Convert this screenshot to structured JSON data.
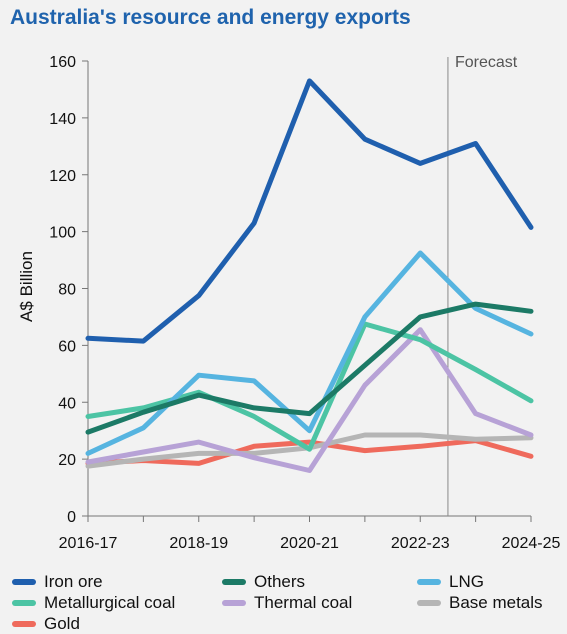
{
  "chart_data": {
    "type": "line",
    "title": "Australia's resource and energy exports",
    "ylabel": "A$ Billion",
    "xlabel": "",
    "ylim": [
      0,
      160
    ],
    "yticks": [
      0,
      20,
      40,
      60,
      80,
      100,
      120,
      140,
      160
    ],
    "categories": [
      "2016-17",
      "2017-18",
      "2018-19",
      "2019-20",
      "2020-21",
      "2021-22",
      "2022-23",
      "2023-24",
      "2024-25"
    ],
    "tick_labels": [
      "2016-17",
      "2018-19",
      "2020-21",
      "2022-23",
      "2024-25"
    ],
    "annotation": {
      "label": "Forecast",
      "after_category": "2022-23"
    },
    "grid": false,
    "legend_position": "bottom",
    "series": [
      {
        "name": "Iron ore",
        "color": "#1f5fae",
        "values": [
          62.5,
          61.5,
          77.5,
          103,
          153,
          132.5,
          124,
          131,
          101.5
        ]
      },
      {
        "name": "Others",
        "color": "#1c7a66",
        "values": [
          29.5,
          36.5,
          42.5,
          38,
          36,
          53,
          70,
          74.5,
          72
        ]
      },
      {
        "name": "LNG",
        "color": "#56b4e0",
        "values": [
          22,
          31,
          49.5,
          47.5,
          30,
          70,
          92.5,
          73,
          64
        ]
      },
      {
        "name": "Metallurgical coal",
        "color": "#4cc4a4",
        "values": [
          35,
          38,
          43.5,
          35,
          23.5,
          67.5,
          62,
          51.5,
          40.5
        ]
      },
      {
        "name": "Thermal coal",
        "color": "#b7a2d6",
        "values": [
          19,
          22.5,
          26,
          20.5,
          16,
          46,
          65.5,
          36,
          28.5
        ]
      },
      {
        "name": "Base metals",
        "color": "#b5b5b5",
        "values": [
          17.5,
          20,
          22,
          22,
          24,
          28.5,
          28.5,
          27,
          27.5
        ]
      },
      {
        "name": "Gold",
        "color": "#ef6a5c",
        "values": [
          18.5,
          19.5,
          18.5,
          24.5,
          26,
          23,
          24.5,
          26.5,
          21
        ]
      }
    ]
  }
}
